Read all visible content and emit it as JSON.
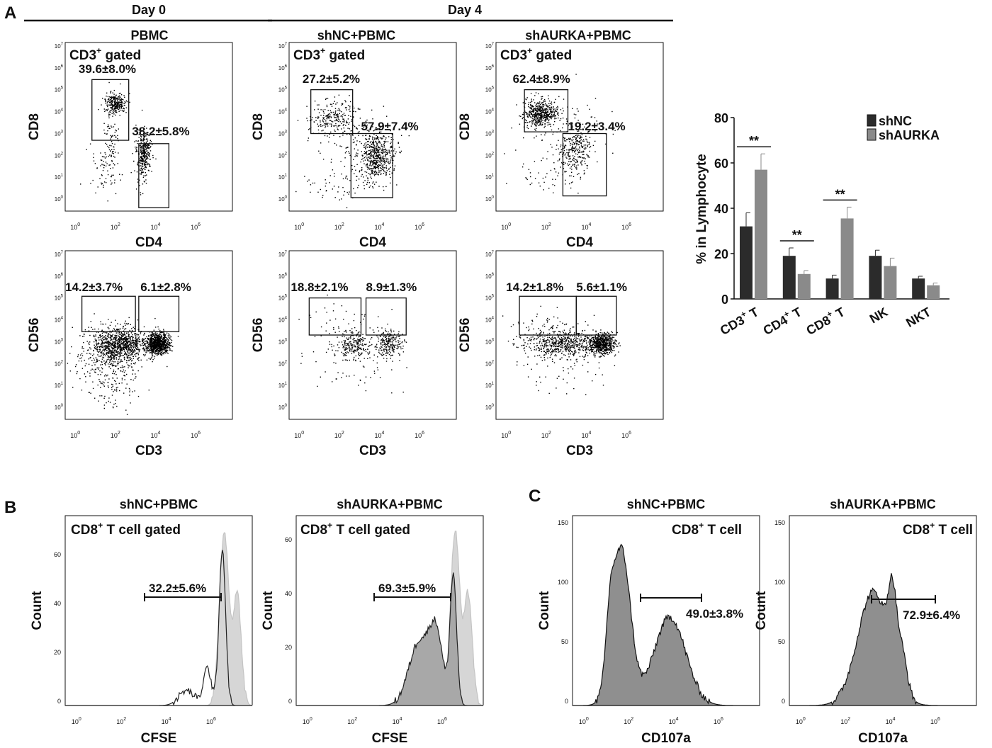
{
  "panels": {
    "A": "A",
    "B": "B",
    "C": "C"
  },
  "headers": {
    "day0": "Day 0",
    "day4": "Day 4"
  },
  "sample_titles": {
    "pbmc": "PBMC",
    "shnc": "shNC+PBMC",
    "shaurka": "shAURKA+PBMC"
  },
  "labels": {
    "cd3_gated_pre": "CD3",
    "cd3_gated_post": " gated",
    "sup_plus": "+",
    "cd8_gated_pre": "CD8",
    "cd8_gated_post": " T cell gated",
    "cd8_cell_pre": "CD8",
    "cd8_cell_post": " T cell"
  },
  "axes": {
    "cd4": "CD4",
    "cd8": "CD8",
    "cd3": "CD3",
    "cd56": "CD56",
    "cfse": "CFSE",
    "cd107a": "CD107a",
    "count": "Count",
    "lymph": "% in Lymphocyte"
  },
  "flow_gates": {
    "pbmc_cd8": "39.6±8.0%",
    "pbmc_cd4": "38.2±5.8%",
    "shnc_cd8": "27.2±5.2%",
    "shnc_cd4": "57.9±7.4%",
    "shaurka_cd8": "62.4±8.9%",
    "shaurka_cd4": "19.2±3.4%",
    "pbmc_nk": "14.2±3.7%",
    "pbmc_nkt": "6.1±2.8%",
    "shnc_nk": "18.8±2.1%",
    "shnc_nkt": "8.9±1.3%",
    "shaurka_nk": "14.2±1.8%",
    "shaurka_nkt": "5.6±1.1%"
  },
  "histogram_gates": {
    "cfse_shnc": "32.2±5.6%",
    "cfse_shaurka": "69.3±5.9%",
    "cd107a_shnc": "49.0±3.8%",
    "cd107a_shaurka": "72.9±6.4%"
  },
  "log_ticks": [
    "10",
    "0",
    "10",
    "2",
    "10",
    "4",
    "10",
    "6"
  ],
  "chart_data": {
    "type": "bar",
    "categories": [
      {
        "base": "CD3",
        "sup": "+",
        "tail": " T"
      },
      {
        "base": "CD4",
        "sup": "+",
        "tail": " T"
      },
      {
        "base": "CD8",
        "sup": "+",
        "tail": "  T"
      },
      {
        "base": "NK",
        "sup": "",
        "tail": ""
      },
      {
        "base": "NKT",
        "sup": "",
        "tail": ""
      }
    ],
    "series": [
      {
        "name": "shNC",
        "color": "#2b2b2b",
        "values": [
          32,
          19,
          9,
          19,
          9
        ],
        "errors": [
          6,
          3.5,
          1.5,
          2.5,
          1
        ]
      },
      {
        "name": "shAURKA",
        "color": "#8a8a8a",
        "values": [
          57,
          11,
          35.5,
          14.5,
          6
        ],
        "errors": [
          7,
          1.5,
          5,
          3.5,
          1
        ]
      }
    ],
    "ylabel": "% in Lymphocyte",
    "ylim": [
      0,
      80
    ],
    "yticks": [
      "0",
      "20",
      "40",
      "60",
      "80"
    ],
    "significance": [
      {
        "category": 0,
        "label": "**"
      },
      {
        "category": 1,
        "label": "**"
      },
      {
        "category": 2,
        "label": "**"
      }
    ],
    "legend": "top-right"
  },
  "histograms": {
    "cfse_shnc_yticks": [
      "0",
      "20",
      "40",
      "60"
    ],
    "cfse_shaurka_yticks": [
      "0",
      "20",
      "40",
      "60"
    ],
    "cd107a_yticks": [
      "0",
      "50",
      "100",
      "150"
    ]
  }
}
